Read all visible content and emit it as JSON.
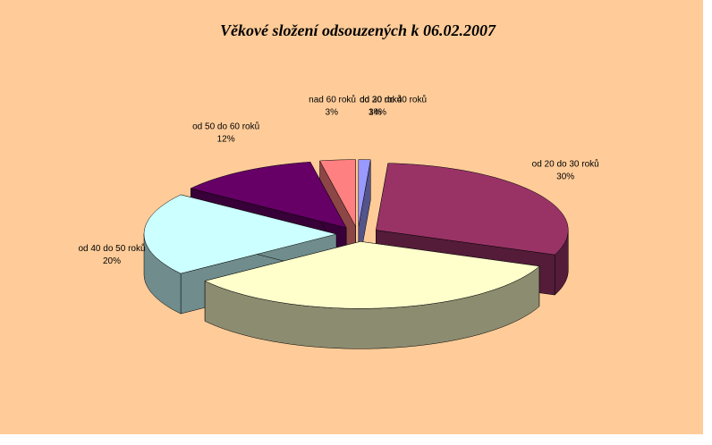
{
  "chart_data": {
    "type": "pie3d",
    "title": "Věkové složení odsouzených k 06.02.2007",
    "categories": [
      "do 20 roků",
      "od 20 do 30 roků",
      "od 30 do 40 roků",
      "od 40 do 50 roků",
      "od 50 do 60 roků",
      "nad 60 roků"
    ],
    "values": [
      1,
      30,
      34,
      20,
      12,
      3
    ],
    "value_labels": [
      "1%",
      "30%",
      "34%",
      "20%",
      "12%",
      "3%"
    ],
    "colors": [
      "#9999ff",
      "#993366",
      "#ffffcc",
      "#ccffff",
      "#660066",
      "#ff8080"
    ]
  }
}
